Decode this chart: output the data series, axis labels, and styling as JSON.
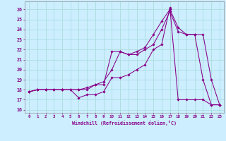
{
  "xlabel": "Windchill (Refroidissement éolien,°C)",
  "bg_color": "#cceeff",
  "grid_color": "#aadddd",
  "line_color": "#880088",
  "line1_x": [
    0,
    1,
    2,
    3,
    4,
    5,
    6,
    7,
    8,
    9,
    10,
    11,
    12,
    13,
    14,
    15,
    16,
    17,
    18,
    19,
    20,
    21,
    22,
    23
  ],
  "line1_y": [
    17.8,
    18.0,
    18.0,
    18.0,
    18.0,
    18.0,
    17.2,
    17.5,
    17.5,
    17.8,
    19.2,
    19.2,
    19.5,
    20.0,
    20.5,
    22.0,
    22.5,
    26.2,
    17.0,
    17.0,
    17.0,
    17.0,
    16.5,
    16.5
  ],
  "line2_x": [
    0,
    1,
    2,
    3,
    4,
    5,
    6,
    7,
    8,
    9,
    10,
    11,
    12,
    13,
    14,
    15,
    16,
    17,
    18,
    19,
    20,
    21,
    22,
    23
  ],
  "line2_y": [
    17.8,
    18.0,
    18.0,
    18.0,
    18.0,
    18.0,
    18.0,
    18.0,
    18.5,
    18.5,
    21.8,
    21.8,
    21.5,
    21.5,
    22.0,
    22.5,
    24.0,
    25.8,
    23.8,
    23.5,
    23.5,
    19.0,
    16.5,
    16.5
  ],
  "line3_x": [
    0,
    1,
    2,
    3,
    4,
    5,
    6,
    7,
    8,
    9,
    10,
    11,
    12,
    13,
    14,
    15,
    16,
    17,
    18,
    19,
    20,
    21,
    22,
    23
  ],
  "line3_y": [
    17.8,
    18.0,
    18.0,
    18.0,
    18.0,
    18.0,
    18.0,
    18.2,
    18.5,
    18.8,
    20.0,
    21.8,
    21.5,
    21.8,
    22.2,
    23.5,
    24.8,
    26.0,
    24.2,
    23.5,
    23.5,
    23.5,
    19.0,
    16.5
  ],
  "ylim": [
    15.7,
    26.8
  ],
  "xlim": [
    -0.5,
    23.5
  ],
  "yticks": [
    16,
    17,
    18,
    19,
    20,
    21,
    22,
    23,
    24,
    25,
    26
  ],
  "xticks": [
    0,
    1,
    2,
    3,
    4,
    5,
    6,
    7,
    8,
    9,
    10,
    11,
    12,
    13,
    14,
    15,
    16,
    17,
    18,
    19,
    20,
    21,
    22,
    23
  ]
}
